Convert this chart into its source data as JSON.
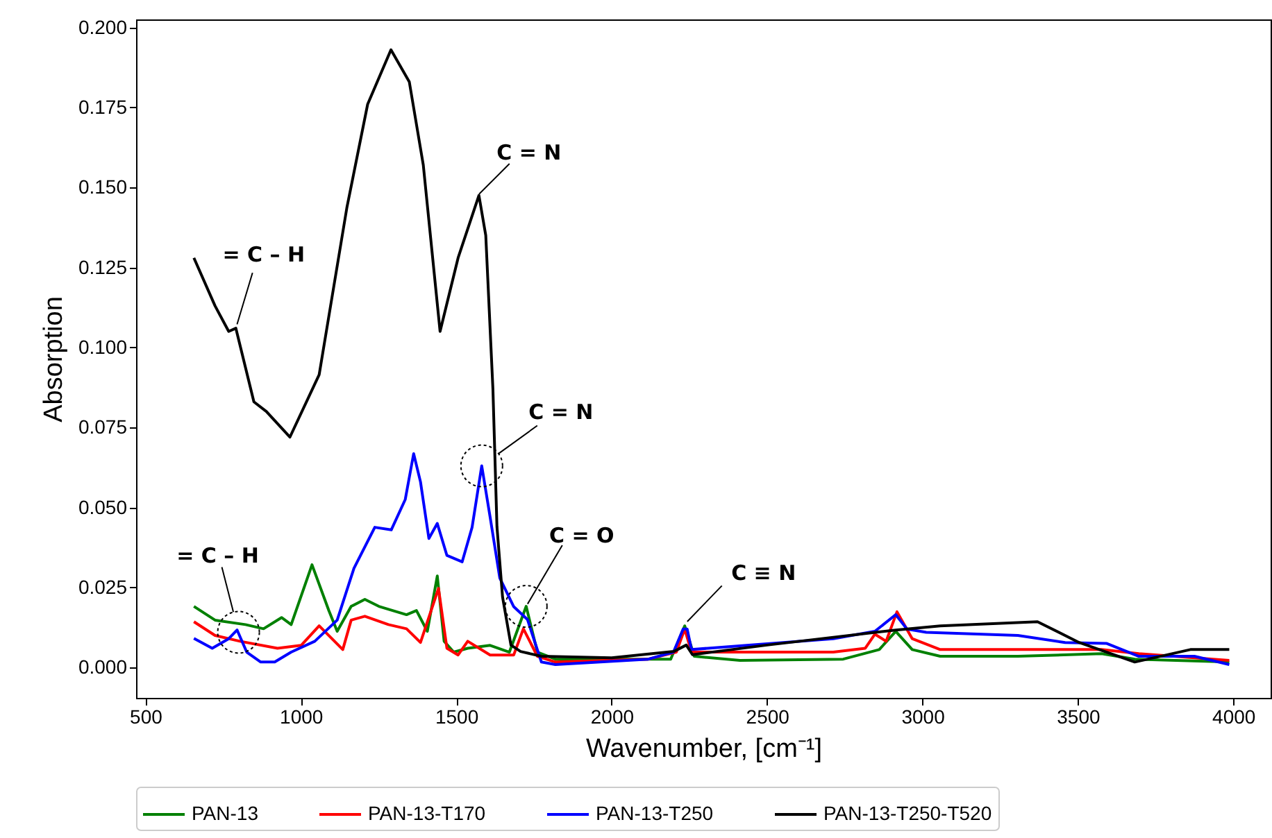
{
  "chart_data": {
    "type": "line",
    "xlabel": "Wavenumber, [cm⁻¹]",
    "ylabel": "Absorption",
    "xlim": [
      470,
      4120
    ],
    "ylim": [
      -0.0095,
      0.2025
    ],
    "xticks": [
      500,
      1000,
      1500,
      2000,
      2500,
      3000,
      3500,
      4000
    ],
    "yticks": [
      {
        "value": 0,
        "label": "0.000"
      },
      {
        "value": 0.025,
        "label": "0.025"
      },
      {
        "value": 0.05,
        "label": "0.050"
      },
      {
        "value": 0.075,
        "label": "0.075"
      },
      {
        "value": 0.1,
        "label": "0.100"
      },
      {
        "value": 0.125,
        "label": "0.125"
      },
      {
        "value": 0.15,
        "label": "0.150"
      },
      {
        "value": 0.175,
        "label": "0.175"
      },
      {
        "value": 0.2,
        "label": "0.200"
      }
    ],
    "grid": false,
    "legend": "bottom",
    "annotations": [
      {
        "text": "= C – H",
        "x": 791,
        "y": 0.106
      },
      {
        "text": "C = N",
        "x": 1564,
        "y": 0.147
      },
      {
        "text": "= C – H",
        "x": 783,
        "y": 0.0173
      },
      {
        "text": "C = N",
        "x": 1582,
        "y": 0.063
      },
      {
        "text": "C = O",
        "x": 1725,
        "y": 0.0191
      },
      {
        "text": "C ≡ N",
        "x": 2234,
        "y": 0.0134
      }
    ],
    "series": [
      {
        "name": "PAN-13",
        "color": "#008000",
        "x": [
          656,
          724,
          822,
          880,
          938,
          969,
          1036,
          1090,
          1117,
          1162,
          1206,
          1251,
          1340,
          1372,
          1407,
          1439,
          1461,
          1492,
          1537,
          1609,
          1671,
          1725,
          1761,
          1819,
          2190,
          2235,
          2266,
          2413,
          2745,
          2861,
          2914,
          2967,
          3057,
          3307,
          3576,
          3683,
          3987
        ],
        "values": [
          0.0191,
          0.0148,
          0.0134,
          0.0121,
          0.0156,
          0.0134,
          0.0321,
          0.0178,
          0.0113,
          0.0191,
          0.0213,
          0.0191,
          0.0165,
          0.0178,
          0.0113,
          0.0286,
          0.0082,
          0.0048,
          0.006,
          0.0069,
          0.0048,
          0.0191,
          0.0048,
          0.0026,
          0.0026,
          0.013,
          0.0035,
          0.0022,
          0.0026,
          0.0056,
          0.0113,
          0.0056,
          0.0035,
          0.0035,
          0.0043,
          0.0026,
          0.0017
        ]
      },
      {
        "name": "PAN-13-T170",
        "color": "#ff0000",
        "x": [
          656,
          724,
          804,
          925,
          1001,
          1059,
          1135,
          1162,
          1206,
          1282,
          1340,
          1385,
          1443,
          1470,
          1506,
          1537,
          1609,
          1685,
          1716,
          1761,
          1819,
          2118,
          2208,
          2235,
          2257,
          2713,
          2816,
          2847,
          2883,
          2918,
          2967,
          3057,
          3576,
          3696,
          3987
        ],
        "values": [
          0.0143,
          0.01,
          0.0082,
          0.006,
          0.0069,
          0.013,
          0.0056,
          0.0148,
          0.016,
          0.0134,
          0.0121,
          0.0078,
          0.0247,
          0.006,
          0.0039,
          0.0082,
          0.0039,
          0.0039,
          0.0121,
          0.0035,
          0.0017,
          0.0026,
          0.0048,
          0.012,
          0.0048,
          0.0048,
          0.006,
          0.0104,
          0.0082,
          0.0174,
          0.009,
          0.0056,
          0.0056,
          0.0043,
          0.0022
        ]
      },
      {
        "name": "PAN-13-T250",
        "color": "#0000ff",
        "x": [
          656,
          715,
          768,
          795,
          826,
          871,
          916,
          969,
          1045,
          1117,
          1171,
          1238,
          1291,
          1336,
          1363,
          1385,
          1412,
          1439,
          1470,
          1519,
          1551,
          1582,
          1609,
          1640,
          1685,
          1729,
          1774,
          1819,
          2118,
          2199,
          2230,
          2243,
          2257,
          2310,
          2713,
          2847,
          2914,
          2950,
          3012,
          3307,
          3459,
          3593,
          3696,
          3875,
          3987
        ],
        "values": [
          0.0091,
          0.006,
          0.009,
          0.0117,
          0.0048,
          0.0017,
          0.0017,
          0.0048,
          0.0082,
          0.0148,
          0.031,
          0.0438,
          0.043,
          0.0525,
          0.0668,
          0.058,
          0.0403,
          0.045,
          0.035,
          0.033,
          0.0438,
          0.063,
          0.047,
          0.028,
          0.019,
          0.015,
          0.0017,
          0.0009,
          0.0026,
          0.0048,
          0.012,
          0.012,
          0.0056,
          0.006,
          0.009,
          0.0113,
          0.0165,
          0.012,
          0.011,
          0.01,
          0.0078,
          0.0075,
          0.0035,
          0.0035,
          0.0009
        ]
      },
      {
        "name": "PAN-13-T250-T520",
        "color": "#000000",
        "x": [
          656,
          724,
          768,
          791,
          849,
          889,
          965,
          1059,
          1148,
          1215,
          1290,
          1349,
          1394,
          1448,
          1506,
          1573,
          1595,
          1618,
          1631,
          1649,
          1676,
          1707,
          1774,
          2000,
          2200,
          2240,
          2260,
          2500,
          2914,
          3057,
          3370,
          3504,
          3683,
          3862,
          3987
        ],
        "values": [
          0.128,
          0.113,
          0.105,
          0.106,
          0.083,
          0.08,
          0.072,
          0.0915,
          0.1436,
          0.176,
          0.193,
          0.183,
          0.157,
          0.105,
          0.128,
          0.1475,
          0.135,
          0.087,
          0.044,
          0.022,
          0.007,
          0.005,
          0.0035,
          0.003,
          0.005,
          0.007,
          0.004,
          0.007,
          0.0117,
          0.013,
          0.0143,
          0.0078,
          0.0017,
          0.0056,
          0.0056
        ]
      }
    ]
  }
}
